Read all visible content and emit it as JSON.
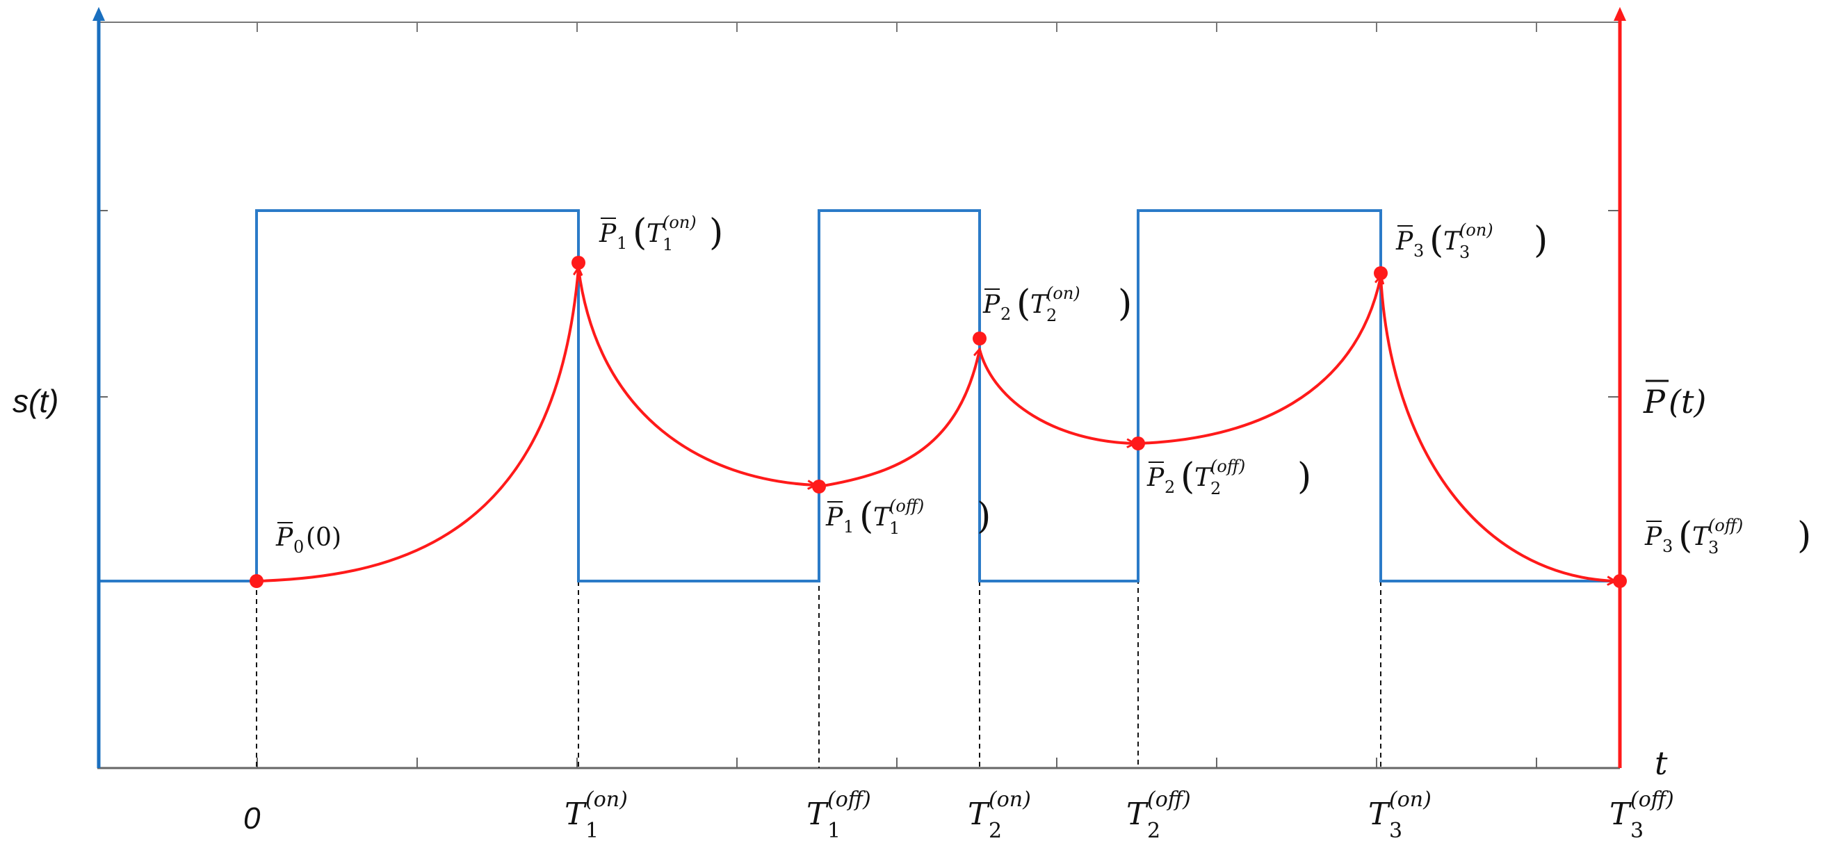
{
  "axes": {
    "left_label": "s(t)",
    "right_label_symbol": "P",
    "right_label_arg": "(t)",
    "x_label": "t",
    "left_color": "#1a6fbf",
    "right_color": "#ff1a1a"
  },
  "ticks": [
    {
      "id": "t0",
      "base": "0",
      "sub": "",
      "sup": ""
    },
    {
      "id": "t1on",
      "base": "T",
      "sub": "1",
      "sup": "(on)"
    },
    {
      "id": "t1off",
      "base": "T",
      "sub": "1",
      "sup": "(off)"
    },
    {
      "id": "t2on",
      "base": "T",
      "sub": "2",
      "sup": "(on)"
    },
    {
      "id": "t2off",
      "base": "T",
      "sub": "2",
      "sup": "(off)"
    },
    {
      "id": "t3on",
      "base": "T",
      "sub": "3",
      "sup": "(on)"
    },
    {
      "id": "t3off",
      "base": "T",
      "sub": "3",
      "sup": "(off)"
    }
  ],
  "points": [
    {
      "id": "p0",
      "sub": "0",
      "arg": "(0)",
      "targ": "",
      "tsup": ""
    },
    {
      "id": "p1on",
      "sub": "1",
      "arg": "",
      "targ": "1",
      "tsup": "(on)"
    },
    {
      "id": "p1off",
      "sub": "1",
      "arg": "",
      "targ": "1",
      "tsup": "(off)"
    },
    {
      "id": "p2on",
      "sub": "2",
      "arg": "",
      "targ": "2",
      "tsup": "(on)"
    },
    {
      "id": "p2off",
      "sub": "2",
      "arg": "",
      "targ": "2",
      "tsup": "(off)"
    },
    {
      "id": "p3on",
      "sub": "3",
      "arg": "",
      "targ": "3",
      "tsup": "(on)"
    },
    {
      "id": "p3off",
      "sub": "3",
      "arg": "",
      "targ": "3",
      "tsup": "(off)"
    }
  ]
}
